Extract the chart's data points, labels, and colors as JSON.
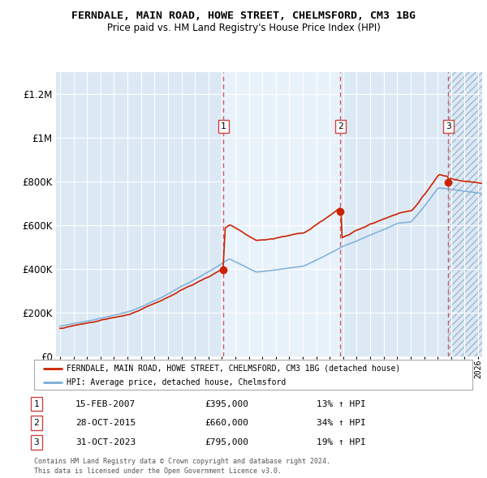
{
  "title": "FERNDALE, MAIN ROAD, HOWE STREET, CHELMSFORD, CM3 1BG",
  "subtitle": "Price paid vs. HM Land Registry's House Price Index (HPI)",
  "background_color": "#ffffff",
  "plot_bg_color": "#dce9f5",
  "plot_bg_light": "#e8f2fb",
  "grid_color": "#ffffff",
  "red_color": "#cc2200",
  "blue_color": "#7aadd4",
  "dashed_line_color": "#cc4444",
  "sale_dates": [
    "15-FEB-2007",
    "28-OCT-2015",
    "31-OCT-2023"
  ],
  "sale_prices": [
    395000,
    660000,
    795000
  ],
  "legend_line1": "FERNDALE, MAIN ROAD, HOWE STREET, CHELMSFORD, CM3 1BG (detached house)",
  "legend_line2": "HPI: Average price, detached house, Chelmsford",
  "footnote1": "Contains HM Land Registry data © Crown copyright and database right 2024.",
  "footnote2": "This data is licensed under the Open Government Licence v3.0.",
  "ylim": [
    0,
    1300000
  ],
  "yticks": [
    0,
    200000,
    400000,
    600000,
    800000,
    1000000,
    1200000
  ],
  "ytick_labels": [
    "£0",
    "£200K",
    "£400K",
    "£600K",
    "£800K",
    "£1M",
    "£1.2M"
  ],
  "rows": [
    [
      1,
      "15-FEB-2007",
      "£395,000",
      "13% ↑ HPI"
    ],
    [
      2,
      "28-OCT-2015",
      "£660,000",
      "34% ↑ HPI"
    ],
    [
      3,
      "31-OCT-2023",
      "£795,000",
      "19% ↑ HPI"
    ]
  ]
}
